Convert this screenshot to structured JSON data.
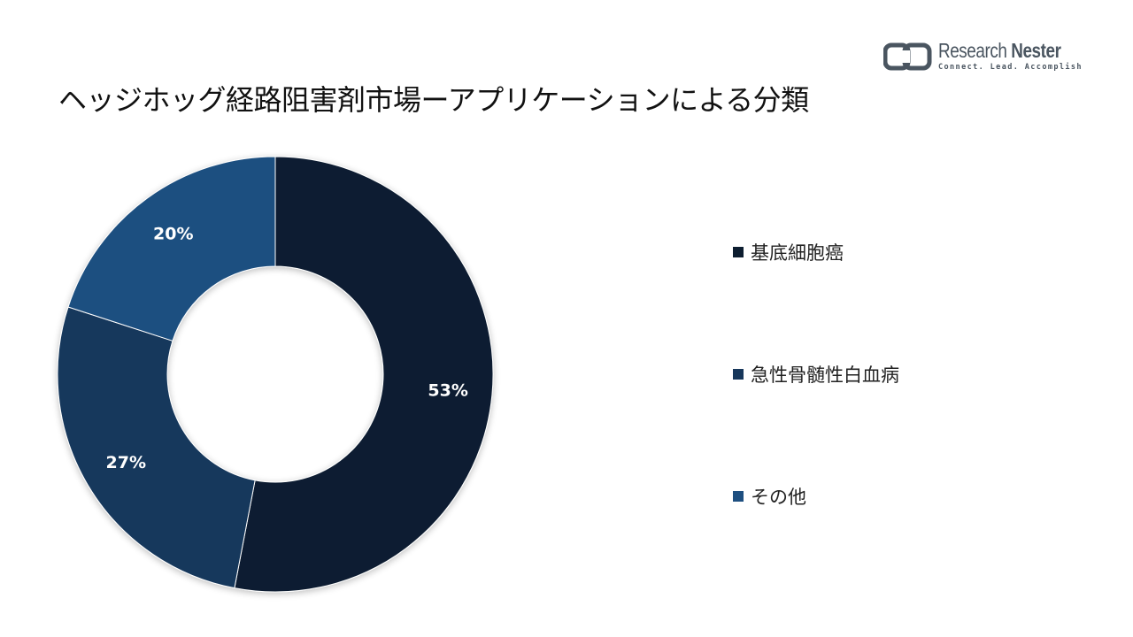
{
  "logo": {
    "name_light": "Research",
    "name_bold": "Nester",
    "tagline": "Connect. Lead. Accomplish",
    "icon": "research-nester-logo-mark",
    "color": "#4a5560"
  },
  "title": "ヘッジホッグ経路阻害剤市場ーアプリケーションによる分類",
  "chart_data": {
    "type": "pie",
    "variant": "donut",
    "title": "ヘッジホッグ経路阻害剤市場ーアプリケーションによる分類",
    "legend_position": "right",
    "slices": [
      {
        "label": "基底細胞癌",
        "value": 53,
        "value_label": "53%",
        "color": "#0d1e30"
      },
      {
        "label": "急性骨髄性白血病",
        "value": 27,
        "value_label": "27%",
        "color": "#17375b"
      },
      {
        "label": "その他",
        "value": 20,
        "value_label": "20%",
        "color": "#1e4f80"
      }
    ]
  }
}
